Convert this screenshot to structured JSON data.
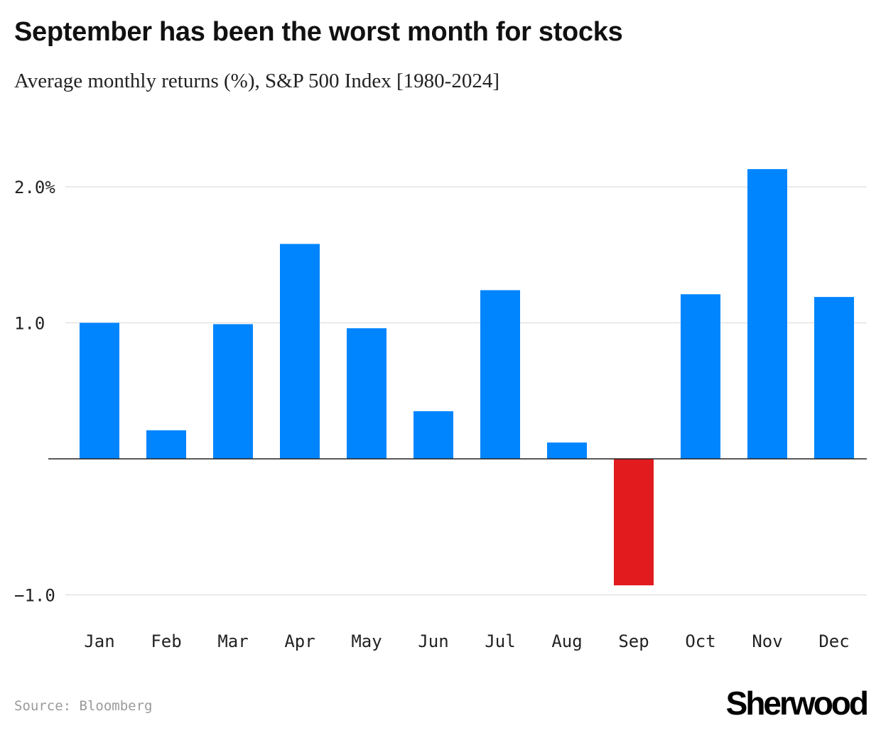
{
  "title": "September has been the worst month for stocks",
  "subtitle": "Average monthly returns (%), S&P 500 Index [1980-2024]",
  "source": "Source: Bloomberg",
  "logo": "Sherwood",
  "colors": {
    "positive": "#0085FF",
    "negative": "#E11B1E",
    "grid": "#e3e3e3",
    "axis": "#222222"
  },
  "chart_data": {
    "type": "bar",
    "categories": [
      "Jan",
      "Feb",
      "Mar",
      "Apr",
      "May",
      "Jun",
      "Jul",
      "Aug",
      "Sep",
      "Oct",
      "Nov",
      "Dec"
    ],
    "values": [
      1.0,
      0.21,
      0.99,
      1.58,
      0.96,
      0.35,
      1.24,
      0.12,
      -0.93,
      1.21,
      2.13,
      1.19
    ],
    "yticks": [
      {
        "value": 2.0,
        "label": "2.0%"
      },
      {
        "value": 1.0,
        "label": "1.0"
      },
      {
        "value": -1.0,
        "label": "−1.0"
      }
    ],
    "ylim": [
      -1.2,
      2.3
    ],
    "grid": true,
    "xlabel": "",
    "ylabel": ""
  }
}
